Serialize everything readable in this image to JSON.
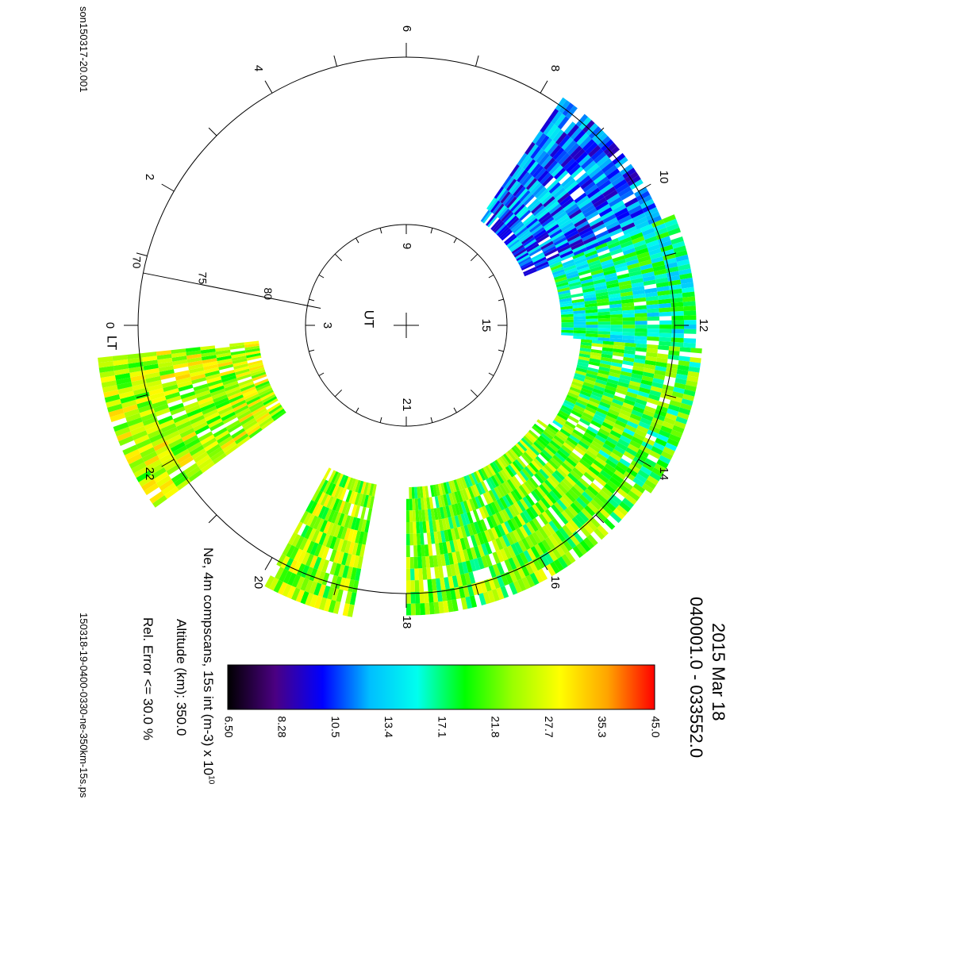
{
  "header": {
    "date": "2015 Mar 18",
    "time_range": "040001.0 - 033552.0",
    "source_file": "son150317-20.001",
    "output_file": "150318-19-0400-0330-ne-350km-15s.ps"
  },
  "info": {
    "quantity": "Ne, 4m compscans, 15s int (m-3) x 10",
    "quantity_exp": "10",
    "altitude": "Altitude (km): 350.0",
    "rel_error": "Rel. Error <= 30.0 %"
  },
  "colorbar": {
    "ticks": [
      "6.50",
      "8.28",
      "10.5",
      "13.4",
      "17.1",
      "21.8",
      "27.7",
      "35.3",
      "45.0"
    ],
    "colors": [
      "#000000",
      "#4b0082",
      "#0000ff",
      "#00bfff",
      "#00ffee",
      "#00ff00",
      "#9aff00",
      "#ffff00",
      "#ffa500",
      "#ff0000"
    ]
  },
  "chart_data": {
    "type": "heatmap",
    "projection": "polar (magnetic latitude vs local time)",
    "lt_labels": [
      "0",
      "2",
      "4",
      "6",
      "8",
      "10",
      "12",
      "14",
      "16",
      "18",
      "20",
      "22"
    ],
    "lt_axis_label": "LT",
    "lat_labels": [
      "70",
      "75",
      "80"
    ],
    "ut_labels": [
      "3",
      "9",
      "15",
      "21"
    ],
    "ut_axis_label": "UT",
    "scale": "log",
    "range": [
      6.5,
      45.0
    ],
    "sectors": [
      {
        "lt_start": 14.3,
        "lt_end": 18.0,
        "lat_inner": 78.0,
        "lat_outer": 68.5,
        "typical_ne": 21.8
      },
      {
        "lt_start": 12.3,
        "lt_end": 14.3,
        "lat_inner": 77.0,
        "lat_outer": 68.0,
        "typical_ne": 20.0
      },
      {
        "lt_start": 10.5,
        "lt_end": 12.3,
        "lat_inner": 78.5,
        "lat_outer": 68.5,
        "typical_ne": 16.5
      },
      {
        "lt_start": 8.3,
        "lt_end": 10.5,
        "lat_inner": 80.5,
        "lat_outer": 69.5,
        "typical_ne": 11.5
      },
      {
        "lt_start": 18.7,
        "lt_end": 19.9,
        "lat_inner": 78.0,
        "lat_outer": 68.0,
        "typical_ne": 23.5
      },
      {
        "lt_start": 21.6,
        "lt_end": 23.6,
        "lat_inner": 79.0,
        "lat_outer": 67.0,
        "typical_ne": 25.0
      }
    ]
  }
}
